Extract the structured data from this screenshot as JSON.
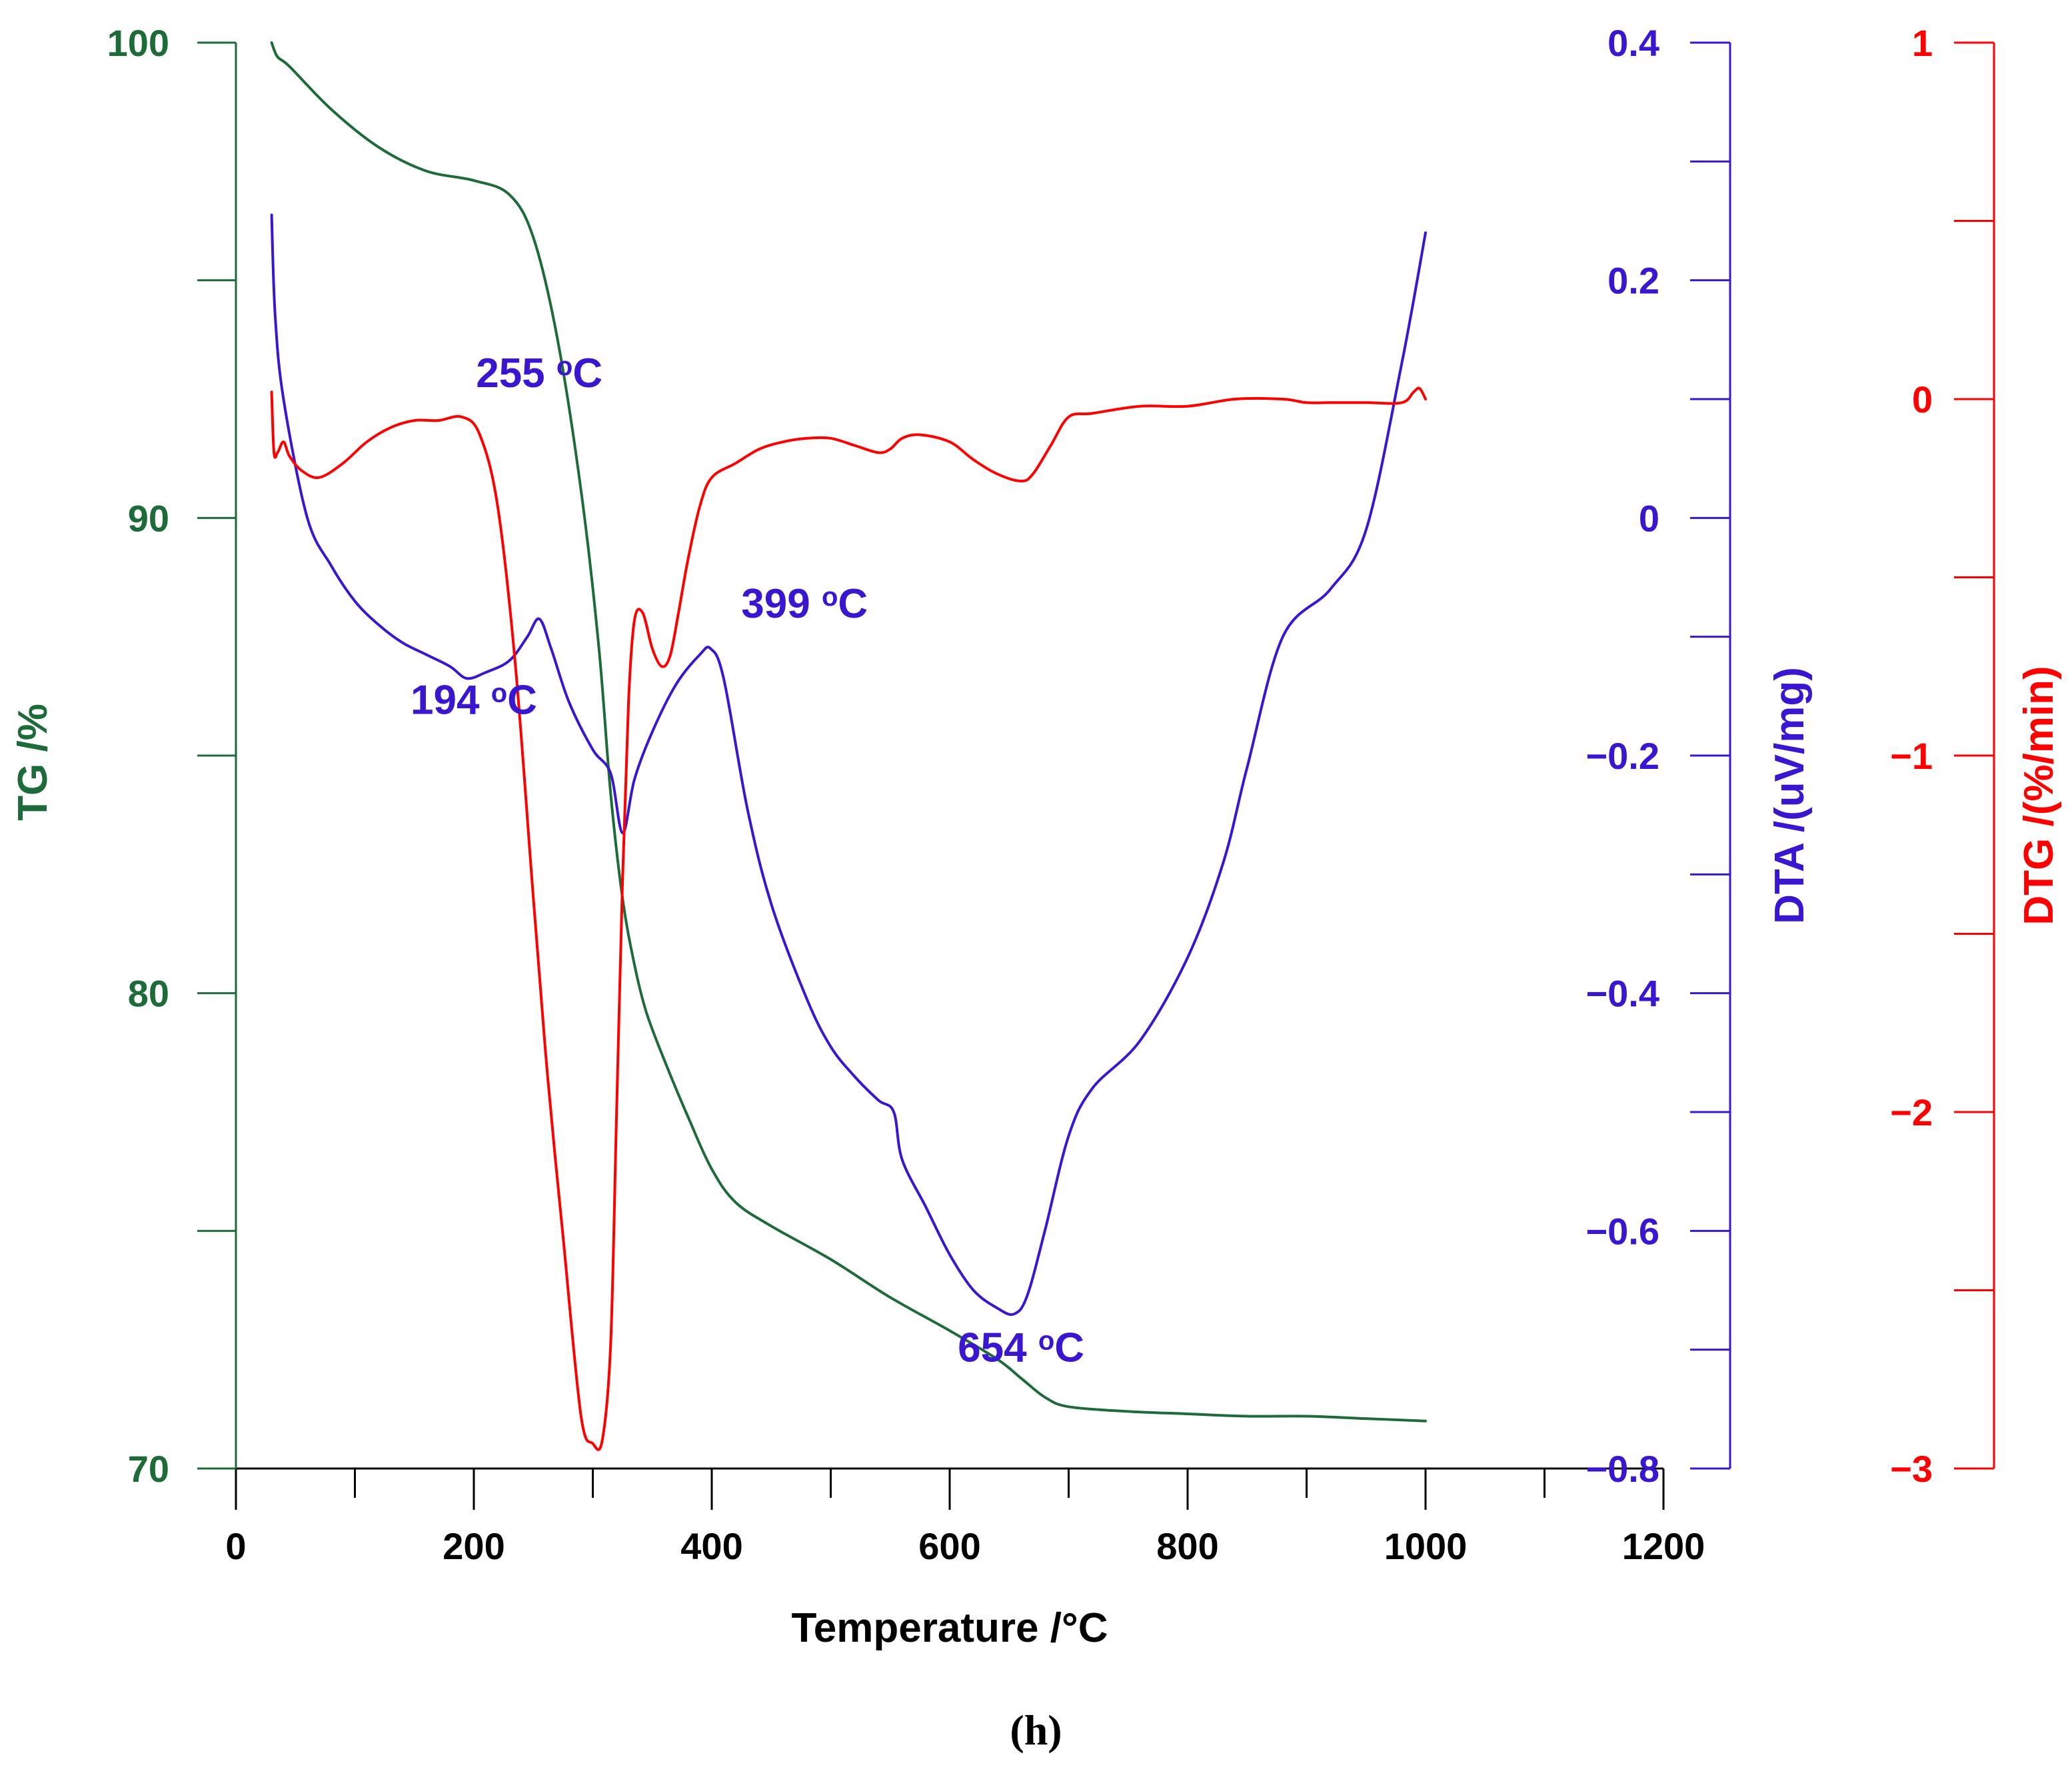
{
  "chart_data": {
    "type": "line",
    "xlabel": "Temperature /°C",
    "xlim": [
      0,
      1200
    ],
    "x_ticks": [
      0,
      200,
      400,
      600,
      800,
      1000,
      1200
    ],
    "x_tick_labels": [
      "0",
      "200",
      "400",
      "600",
      "800",
      "1000",
      "1200"
    ],
    "axes": {
      "tg": {
        "label": "TG /%",
        "range": [
          70,
          100
        ],
        "ticks": [
          70,
          80,
          90,
          100
        ],
        "tick_labels": [
          "70",
          "80",
          "90",
          "100"
        ],
        "color": "#1e6b3a"
      },
      "dta": {
        "label": "DTA /(uV/mg)",
        "range": [
          -0.8,
          0.4
        ],
        "ticks": [
          -0.8,
          -0.6,
          -0.4,
          -0.2,
          0,
          0.2,
          0.4
        ],
        "tick_labels": [
          "−0.8",
          "−0.6",
          "−0.4",
          "−0.2",
          "0",
          "0.2",
          "0.4"
        ],
        "color": "#3a16d0"
      },
      "dtg": {
        "label": "DTG /(%/min)",
        "range": [
          -3,
          1
        ],
        "ticks": [
          -3,
          -2,
          -1,
          0,
          1
        ],
        "tick_labels": [
          "−3",
          "−2",
          "−1",
          "0",
          "1"
        ],
        "color": "#ff0000"
      }
    },
    "series": [
      {
        "name": "TG",
        "axis": "tg",
        "color": "#1e6b3a",
        "x": [
          30,
          35,
          45,
          80,
          120,
          160,
          200,
          230,
          250,
          270,
          290,
          305,
          315,
          325,
          335,
          345,
          360,
          380,
          400,
          420,
          450,
          500,
          550,
          600,
          640,
          660,
          680,
          700,
          750,
          800,
          850,
          900,
          950,
          1000
        ],
        "y": [
          100,
          99.7,
          99.5,
          98.6,
          97.8,
          97.3,
          97.1,
          96.8,
          95.9,
          93.8,
          90.6,
          87.3,
          84.2,
          82.0,
          80.6,
          79.6,
          78.6,
          77.4,
          76.3,
          75.6,
          75.1,
          74.4,
          73.6,
          72.9,
          72.3,
          71.9,
          71.5,
          71.3,
          71.2,
          71.15,
          71.1,
          71.1,
          71.05,
          71.0
        ]
      },
      {
        "name": "DTA",
        "axis": "dta",
        "color": "#3a16d0",
        "x": [
          30,
          33,
          40,
          60,
          80,
          100,
          120,
          140,
          160,
          180,
          194,
          210,
          230,
          245,
          255,
          265,
          280,
          300,
          315,
          325,
          335,
          350,
          370,
          390,
          399,
          410,
          430,
          450,
          480,
          500,
          520,
          540,
          553,
          560,
          580,
          600,
          620,
          640,
          654,
          665,
          680,
          700,
          720,
          760,
          800,
          830,
          850,
          880,
          920,
          950,
          980,
          1000
        ],
        "y": [
          0.255,
          0.17,
          0.1,
          0.0,
          -0.04,
          -0.07,
          -0.09,
          -0.105,
          -0.115,
          -0.125,
          -0.135,
          -0.13,
          -0.12,
          -0.1,
          -0.085,
          -0.11,
          -0.155,
          -0.195,
          -0.215,
          -0.265,
          -0.22,
          -0.18,
          -0.14,
          -0.115,
          -0.11,
          -0.135,
          -0.245,
          -0.325,
          -0.405,
          -0.445,
          -0.47,
          -0.49,
          -0.5,
          -0.54,
          -0.58,
          -0.62,
          -0.65,
          -0.665,
          -0.67,
          -0.655,
          -0.6,
          -0.52,
          -0.48,
          -0.44,
          -0.37,
          -0.29,
          -0.21,
          -0.1,
          -0.06,
          -0.01,
          0.13,
          0.24
        ]
      },
      {
        "name": "DTG",
        "axis": "dtg",
        "color": "#ff0000",
        "x": [
          30,
          32,
          35,
          40,
          45,
          55,
          70,
          90,
          110,
          130,
          150,
          170,
          190,
          205,
          220,
          235,
          250,
          262,
          275,
          290,
          300,
          308,
          315,
          320,
          325,
          330,
          335,
          342,
          350,
          358,
          365,
          372,
          380,
          390,
          400,
          420,
          440,
          460,
          480,
          500,
          520,
          540,
          550,
          560,
          575,
          600,
          620,
          640,
          660,
          670,
          685,
          700,
          720,
          760,
          800,
          840,
          880,
          900,
          920,
          950,
          980,
          990,
          995,
          1000
        ],
        "y": [
          0.02,
          -0.15,
          -0.15,
          -0.12,
          -0.16,
          -0.2,
          -0.22,
          -0.18,
          -0.12,
          -0.08,
          -0.06,
          -0.06,
          -0.05,
          -0.1,
          -0.3,
          -0.75,
          -1.4,
          -1.9,
          -2.35,
          -2.85,
          -2.93,
          -2.92,
          -2.65,
          -2.0,
          -1.35,
          -0.85,
          -0.62,
          -0.6,
          -0.7,
          -0.75,
          -0.72,
          -0.6,
          -0.45,
          -0.3,
          -0.22,
          -0.18,
          -0.14,
          -0.12,
          -0.11,
          -0.11,
          -0.13,
          -0.15,
          -0.14,
          -0.11,
          -0.1,
          -0.12,
          -0.17,
          -0.21,
          -0.23,
          -0.21,
          -0.13,
          -0.05,
          -0.04,
          -0.02,
          -0.02,
          0.0,
          0.0,
          -0.01,
          -0.01,
          -0.01,
          -0.01,
          0.02,
          0.03,
          0.0
        ]
      }
    ],
    "annotations": [
      {
        "id": "dta-peak-255",
        "x": 255,
        "y": 0.11,
        "axis": "dta",
        "value": "255",
        "unit": "C",
        "sup": "o",
        "color": "#3a16d0"
      },
      {
        "id": "dta-min-194",
        "x": 200,
        "y": -0.165,
        "axis": "dta",
        "value": "194",
        "unit": "C",
        "sup": "o",
        "color": "#3a16d0"
      },
      {
        "id": "dta-peak-399",
        "x": 478,
        "y": -0.084,
        "axis": "dta",
        "value": "399",
        "unit": "C",
        "sup": "o",
        "color": "#3a16d0"
      },
      {
        "id": "dta-min-654",
        "x": 660,
        "y": -0.71,
        "axis": "dta",
        "value": "654",
        "unit": "C",
        "sup": "o",
        "color": "#3a16d0"
      }
    ],
    "panel_caption": "(h)"
  }
}
